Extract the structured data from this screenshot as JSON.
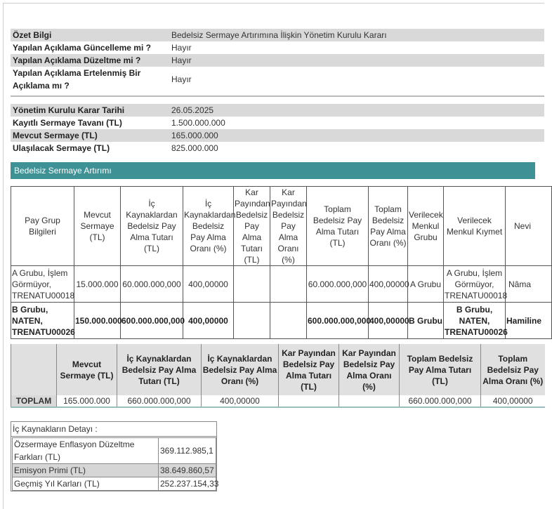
{
  "summary": [
    {
      "label": "Özet Bilgi",
      "value": "Bedelsiz Sermaye Artırımına İlişkin Yönetim Kurulu Kararı"
    },
    {
      "label": "Yapılan Açıklama Güncelleme mi ?",
      "value": "Hayır"
    },
    {
      "label": "Yapılan Açıklama Düzeltme mi ?",
      "value": "Hayır"
    },
    {
      "label": "Yapılan Açıklama Ertelenmiş Bir Açıklama mı ?",
      "value": "Hayır"
    }
  ],
  "details": [
    {
      "label": "Yönetim Kurulu Karar Tarihi",
      "value": "26.05.2025"
    },
    {
      "label": "Kayıtlı Sermaye Tavanı (TL)",
      "value": "1.500.000.000"
    },
    {
      "label": "Mevcut Sermaye (TL)",
      "value": "165.000.000"
    },
    {
      "label": "Ulaşılacak Sermaye (TL)",
      "value": "825.000.000"
    }
  ],
  "section_title": "Bedelsiz Sermaye Artırımı",
  "groups": {
    "headers": [
      "Pay Grup Bilgileri",
      "Mevcut Sermaye (TL)",
      "İç Kaynaklardan Bedelsiz Pay Alma Tutarı (TL)",
      "İç Kaynaklardan Bedelsiz Pay Alma Oranı (%)",
      "Kar Payından Bedelsiz Pay Alma Tutarı (TL)",
      "Kar Payından Bedelsiz Pay Alma Oranı (%)",
      "Toplam Bedelsiz Pay Alma Tutarı (TL)",
      "Toplam Bedelsiz Pay Alma Oranı (%)",
      "Verilecek Menkul Grubu",
      "Verilecek Menkul Kıymet",
      "Nevi"
    ],
    "rows": [
      [
        "A Grubu, İşlem Görmüyor, TRENATU00018",
        "15.000.000",
        "60.000.000,000",
        "400,00000",
        "",
        "",
        "60.000.000,000",
        "400,00000",
        "A Grubu",
        "A Grubu, İşlem Görmüyor, TRENATU00018",
        "Nâma"
      ],
      [
        "B Grubu, NATEN, TRENATU00026",
        "150.000.000",
        "600.000.000,000",
        "400,00000",
        "",
        "",
        "600.000.000,000",
        "400,00000",
        "B Grubu",
        "B Grubu, NATEN, TRENATU00026",
        "Hamiline"
      ]
    ]
  },
  "totals": {
    "headers": [
      "Mevcut Sermaye (TL)",
      "İç Kaynaklardan Bedelsiz Pay Alma Tutarı (TL)",
      "İç Kaynaklardan Bedelsiz Pay Alma Oranı (%)",
      "Kar Payından Bedelsiz Pay Alma Tutarı (TL)",
      "Kar Payından Bedelsiz Pay Alma Oranı (%)",
      "Toplam Bedelsiz Pay Alma Tutarı (TL)",
      "Toplam Bedelsiz Pay Alma Oranı (%)"
    ],
    "label": "TOPLAM",
    "values": [
      "165.000.000",
      "660.000.000,000",
      "400,00000",
      "",
      "",
      "660.000.000,000",
      "400,00000"
    ]
  },
  "internal_sources": {
    "title": "İç Kaynakların Detayı :",
    "rows": [
      {
        "label": "Özsermaye Enflasyon Düzeltme Farkları (TL)",
        "value": "369.112.985,1"
      },
      {
        "label": "Emisyon Primi (TL)",
        "value": "38.649.860,57"
      },
      {
        "label": "Geçmiş Yıl Karları (TL)",
        "value": "252.237.154,33"
      }
    ]
  },
  "colors": {
    "accent": "#3e9296",
    "row_stripe": "#d9d9d9"
  }
}
